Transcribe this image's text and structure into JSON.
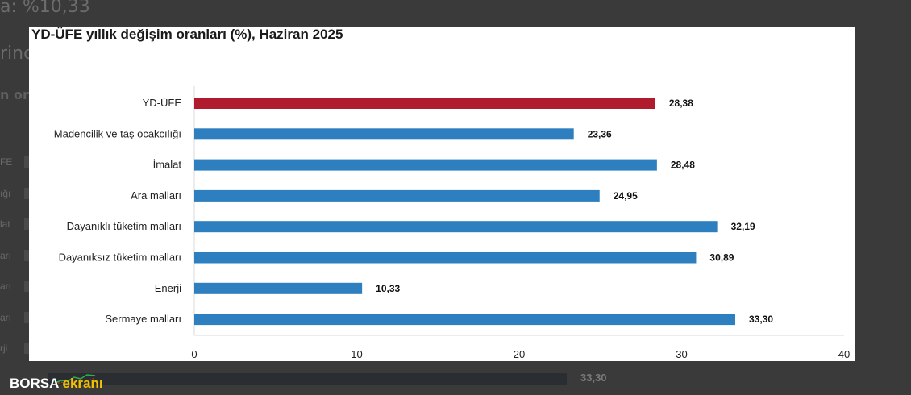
{
  "background": {
    "top_text": "a: %10,33",
    "line2_text": "rinc",
    "line3_text": "n ora",
    "row_labels": [
      "FE",
      "ığı",
      "lat",
      "arı",
      "arı",
      "arı",
      "rji"
    ],
    "bottom_value": "33,30"
  },
  "chart_data": {
    "type": "bar",
    "orientation": "horizontal",
    "title": "YD-ÜFE yıllık değişim oranları (%), Haziran 2025",
    "categories": [
      "YD-ÜFE",
      "Madencilik ve taş ocakcılığı",
      "İmalat",
      "Ara malları",
      "Dayanıklı tüketim malları",
      "Dayanıksız tüketim malları",
      "Enerji",
      "Sermaye malları"
    ],
    "values": [
      28.38,
      23.36,
      28.48,
      24.95,
      32.19,
      30.89,
      10.33,
      33.3
    ],
    "value_labels": [
      "28,38",
      "23,36",
      "28,48",
      "24,95",
      "32,19",
      "30,89",
      "10,33",
      "33,30"
    ],
    "highlight_index": 0,
    "colors": {
      "highlight": "#b01c2e",
      "bar": "#2e7fc0"
    },
    "xlim": [
      0,
      40
    ],
    "xticks": [
      0,
      10,
      20,
      30,
      40
    ],
    "grid": false,
    "legend": "none"
  },
  "watermark": {
    "word1": "BORSA",
    "word2": "ekranı"
  }
}
